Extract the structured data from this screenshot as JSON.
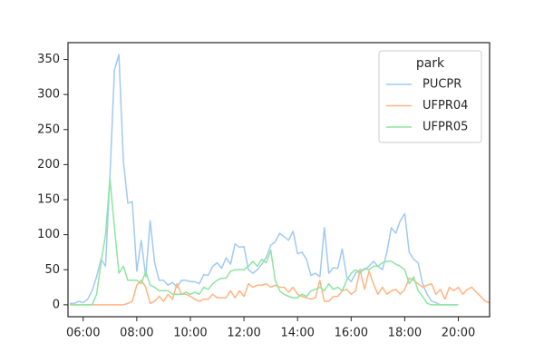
{
  "chart_data": {
    "type": "line",
    "x": [
      "05:30",
      "05:40",
      "05:50",
      "06:00",
      "06:10",
      "06:20",
      "06:30",
      "06:40",
      "06:50",
      "07:00",
      "07:10",
      "07:20",
      "07:30",
      "07:40",
      "07:50",
      "08:00",
      "08:10",
      "08:20",
      "08:30",
      "08:40",
      "08:50",
      "09:00",
      "09:10",
      "09:20",
      "09:30",
      "09:40",
      "09:50",
      "10:00",
      "10:10",
      "10:20",
      "10:30",
      "10:40",
      "10:50",
      "11:00",
      "11:10",
      "11:20",
      "11:30",
      "11:40",
      "11:50",
      "12:00",
      "12:10",
      "12:20",
      "12:30",
      "12:40",
      "12:50",
      "13:00",
      "13:10",
      "13:20",
      "13:30",
      "13:40",
      "13:50",
      "14:00",
      "14:10",
      "14:20",
      "14:30",
      "14:40",
      "14:50",
      "15:00",
      "15:10",
      "15:20",
      "15:30",
      "15:40",
      "15:50",
      "16:00",
      "16:10",
      "16:20",
      "16:30",
      "16:40",
      "16:50",
      "17:00",
      "17:10",
      "17:20",
      "17:30",
      "17:40",
      "17:50",
      "18:00",
      "18:10",
      "18:20",
      "18:30",
      "18:40",
      "18:50",
      "19:00",
      "19:10",
      "19:20",
      "19:30",
      "19:40",
      "19:50",
      "20:00",
      "20:10",
      "20:20",
      "20:30",
      "20:40",
      "20:50",
      "21:00",
      "21:10"
    ],
    "series": [
      {
        "name": "PUCPR",
        "color": "#a1c9f4",
        "values": [
          2,
          2,
          5,
          3,
          8,
          20,
          40,
          65,
          55,
          185,
          335,
          357,
          205,
          145,
          147,
          48,
          92,
          40,
          120,
          60,
          35,
          35,
          28,
          32,
          25,
          35,
          35,
          33,
          33,
          30,
          43,
          42,
          55,
          60,
          52,
          67,
          58,
          87,
          82,
          83,
          50,
          45,
          50,
          58,
          68,
          85,
          90,
          102,
          97,
          92,
          105,
          73,
          75,
          65,
          42,
          45,
          40,
          110,
          45,
          53,
          52,
          80,
          40,
          33,
          45,
          50,
          50,
          55,
          62,
          55,
          50,
          75,
          110,
          102,
          120,
          130,
          75,
          65,
          60,
          30,
          15,
          5,
          3,
          0,
          0,
          0,
          0,
          0,
          null,
          null,
          null,
          null,
          null,
          null,
          null
        ]
      },
      {
        "name": "UFPR04",
        "color": "#ffb482",
        "values": [
          0,
          0,
          0,
          0,
          0,
          0,
          0,
          0,
          0,
          0,
          0,
          0,
          0,
          2,
          5,
          28,
          35,
          25,
          2,
          5,
          12,
          5,
          15,
          8,
          30,
          15,
          15,
          12,
          8,
          5,
          8,
          8,
          15,
          10,
          10,
          10,
          20,
          10,
          20,
          12,
          30,
          25,
          28,
          28,
          30,
          25,
          28,
          25,
          25,
          18,
          25,
          15,
          12,
          10,
          8,
          10,
          35,
          5,
          5,
          12,
          12,
          20,
          22,
          15,
          20,
          50,
          22,
          48,
          30,
          15,
          25,
          15,
          20,
          22,
          15,
          22,
          38,
          35,
          30,
          25,
          28,
          30,
          15,
          22,
          8,
          25,
          20,
          25,
          15,
          22,
          25,
          18,
          12,
          5,
          3
        ]
      },
      {
        "name": "UFPR05",
        "color": "#8de5a1",
        "values": [
          0,
          0,
          0,
          0,
          0,
          0,
          15,
          60,
          100,
          180,
          110,
          45,
          55,
          35,
          35,
          35,
          30,
          48,
          28,
          25,
          20,
          20,
          20,
          15,
          15,
          15,
          18,
          15,
          18,
          15,
          25,
          22,
          30,
          35,
          38,
          38,
          48,
          50,
          50,
          50,
          55,
          62,
          55,
          65,
          60,
          78,
          35,
          20,
          15,
          12,
          10,
          10,
          15,
          12,
          20,
          22,
          25,
          20,
          30,
          22,
          25,
          20,
          35,
          45,
          50,
          45,
          52,
          50,
          55,
          55,
          60,
          62,
          62,
          58,
          55,
          50,
          30,
          40,
          20,
          12,
          2,
          0,
          0,
          0,
          0,
          0,
          0,
          0,
          null,
          null,
          null,
          null,
          null,
          null,
          null
        ]
      }
    ],
    "xlim": [
      "05:26",
      "21:10"
    ],
    "xticks": [
      "06:00",
      "08:00",
      "10:00",
      "12:00",
      "14:00",
      "16:00",
      "18:00",
      "20:00"
    ],
    "ylim": [
      -17,
      374
    ],
    "yticks": [
      0,
      50,
      100,
      150,
      200,
      250,
      300,
      350
    ],
    "legend_title": "park",
    "legend_position": "upper right",
    "grid": false
  }
}
